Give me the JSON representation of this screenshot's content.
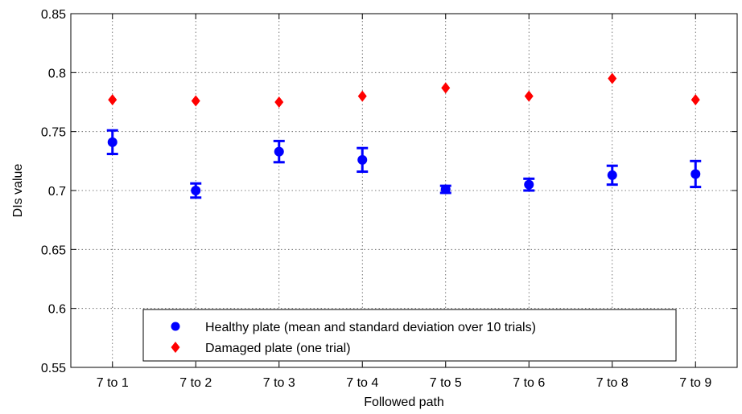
{
  "chart_data": {
    "type": "scatter",
    "categories": [
      "7 to 1",
      "7 to 2",
      "7 to 3",
      "7 to 4",
      "7 to 5",
      "7 to 6",
      "7 to 8",
      "7 to 9"
    ],
    "xlabel": "Followed path",
    "ylabel": "DIs value",
    "ylim": [
      0.55,
      0.85
    ],
    "yticks": [
      "0.55",
      "0.6",
      "0.65",
      "0.7",
      "0.75",
      "0.8",
      "0.85"
    ],
    "grid": true,
    "legend_position": "bottom-center",
    "series": [
      {
        "name": "Healthy plate (mean and standard deviation over 10 trials)",
        "marker": "circle",
        "color": "#0000ff",
        "values": [
          0.741,
          0.7,
          0.733,
          0.726,
          0.701,
          0.705,
          0.713,
          0.714
        ],
        "std": [
          0.01,
          0.006,
          0.009,
          0.01,
          0.003,
          0.005,
          0.008,
          0.011
        ]
      },
      {
        "name": "Damaged plate (one trial)",
        "marker": "diamond",
        "color": "#ff0000",
        "values": [
          0.777,
          0.776,
          0.775,
          0.78,
          0.787,
          0.78,
          0.795,
          0.777
        ]
      }
    ]
  }
}
